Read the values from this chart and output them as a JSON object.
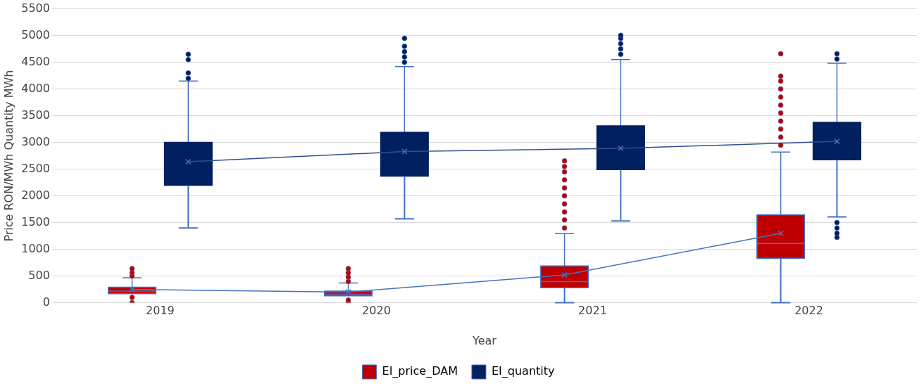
{
  "chart_data": {
    "type": "box",
    "xlabel": "Year",
    "ylabel": "Price RON/MWh Quantity MWh",
    "categories": [
      "2019",
      "2020",
      "2021",
      "2022"
    ],
    "ylim": [
      0,
      5500
    ],
    "yticks": [
      0,
      500,
      1000,
      1500,
      2000,
      2500,
      3000,
      3500,
      4000,
      4500,
      5000,
      5500
    ],
    "grid": "y",
    "legend": "bottom",
    "series": [
      {
        "name": "EI_price_DAM",
        "color": "#c00000",
        "boxes": [
          {
            "low": 170,
            "q1": 170,
            "median": 220,
            "q3": 290,
            "high": 470,
            "mean": 250,
            "outliers": [
              0,
              100,
              500,
              560,
              640
            ]
          },
          {
            "low": 130,
            "q1": 130,
            "median": 160,
            "q3": 220,
            "high": 370,
            "mean": 200,
            "outliers": [
              0,
              50,
              400,
              480,
              560,
              640
            ]
          },
          {
            "low": 0,
            "q1": 280,
            "median": 395,
            "q3": 690,
            "high": 1295,
            "mean": 520,
            "outliers": [
              1400,
              1550,
              1700,
              1850,
              2000,
              2150,
              2300,
              2450,
              2550,
              2655
            ]
          },
          {
            "low": 0,
            "q1": 830,
            "median": 1110,
            "q3": 1645,
            "high": 2820,
            "mean": 1300,
            "outliers": [
              2950,
              3100,
              3250,
              3400,
              3550,
              3700,
              3850,
              4000,
              4150,
              4240,
              4660
            ]
          }
        ]
      },
      {
        "name": "EI_quantity",
        "color": "#002060",
        "boxes": [
          {
            "low": 1400,
            "q1": 2200,
            "median": 2600,
            "q3": 3000,
            "high": 4150,
            "mean": 2640,
            "outliers": [
              4200,
              4300,
              4550,
              4650
            ]
          },
          {
            "low": 1570,
            "q1": 2370,
            "median": 2800,
            "q3": 3190,
            "high": 4420,
            "mean": 2830,
            "outliers": [
              4500,
              4600,
              4700,
              4800,
              4950
            ]
          },
          {
            "low": 1530,
            "q1": 2490,
            "median": 2900,
            "q3": 3310,
            "high": 4550,
            "mean": 2890,
            "outliers": [
              4650,
              4750,
              4850,
              4950,
              5005
            ]
          },
          {
            "low": 1605,
            "q1": 2675,
            "median": 3050,
            "q3": 3375,
            "high": 4480,
            "mean": 3020,
            "outliers": [
              1225,
              1300,
              1400,
              1500,
              4560,
              4660
            ]
          }
        ]
      },
      {
        "type": "line",
        "color": "#4472c4",
        "marker": "none",
        "values": [
          250,
          200,
          520,
          1300
        ]
      },
      {
        "type": "line",
        "color": "#2f4f8f",
        "marker": "none",
        "values": [
          2640,
          2830,
          2890,
          3020
        ]
      }
    ]
  }
}
